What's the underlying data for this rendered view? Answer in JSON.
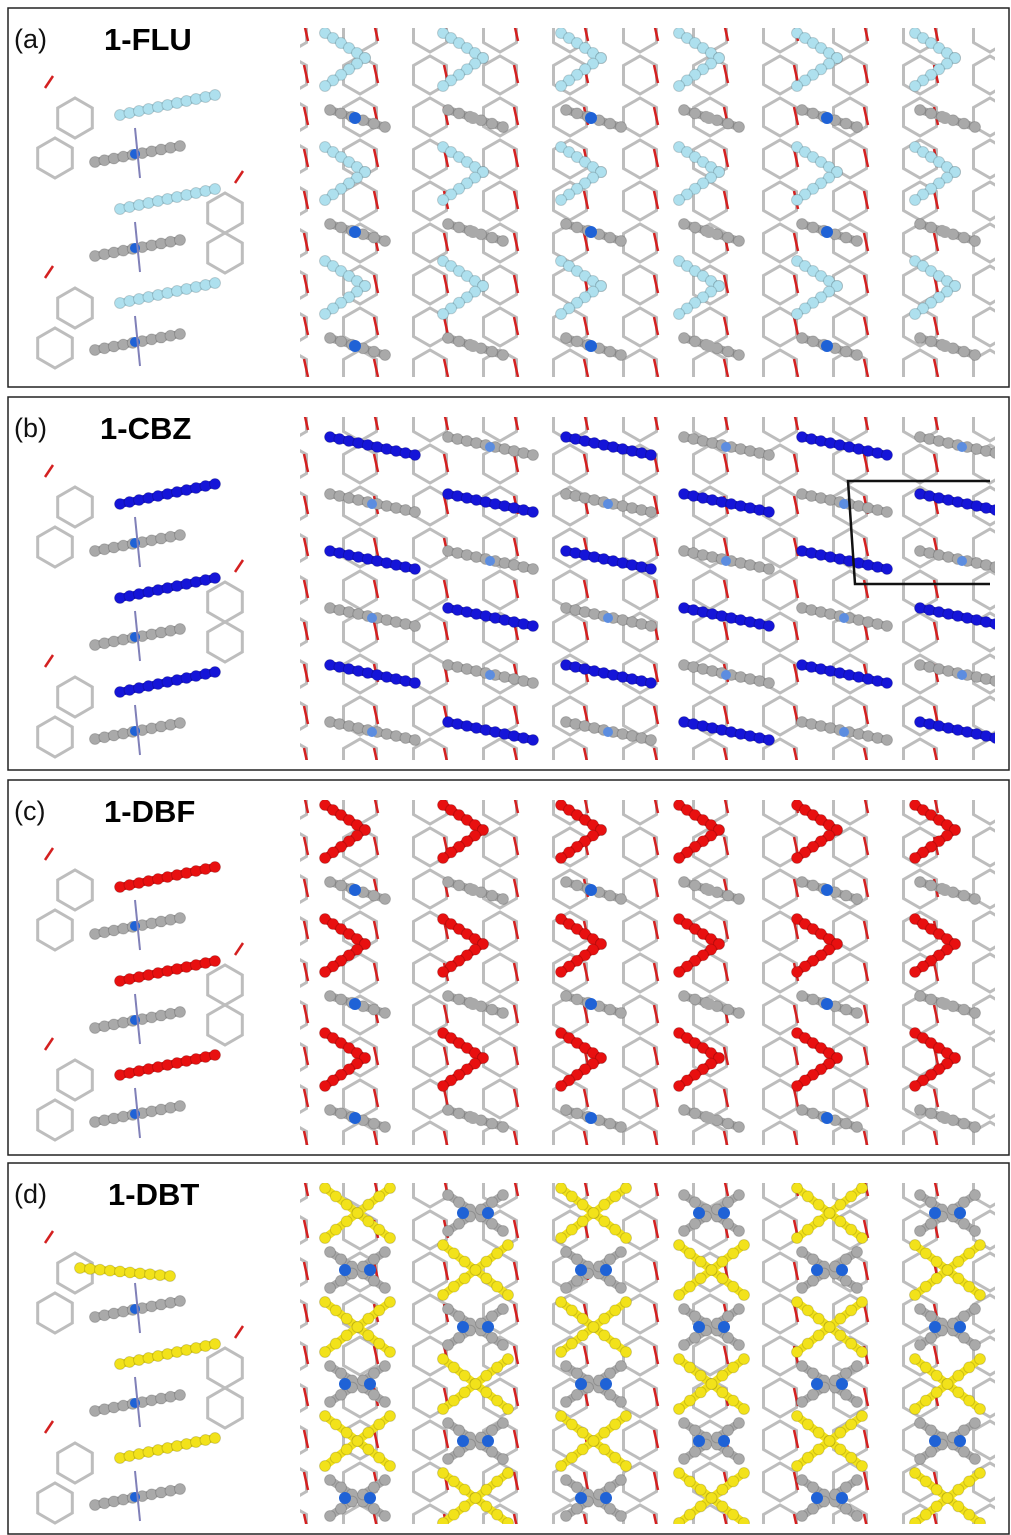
{
  "panels": [
    {
      "label": "(a)",
      "title": "1-FLU"
    },
    {
      "label": "(b)",
      "title": "1-CBZ"
    },
    {
      "label": "(c)",
      "title": "1-DBF"
    },
    {
      "label": "(d)",
      "title": "1-DBT"
    }
  ]
}
